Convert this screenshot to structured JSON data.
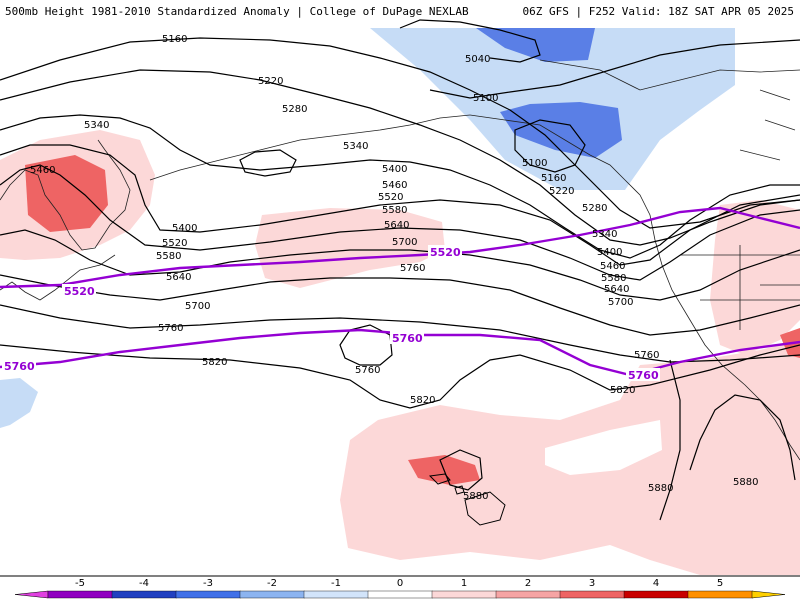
{
  "header": {
    "left": "500mb Height 1981-2010 Standardized Anomaly | College of DuPage NEXLAB",
    "right": "06Z GFS | F252 Valid: 18Z SAT APR 05 2025"
  },
  "contour_labels": {
    "c5160": "5160",
    "c5220": "5220",
    "c5280": "5280",
    "c5340": "5340",
    "c5400": "5400",
    "c5460": "5460",
    "c5520": "5520",
    "c5580": "5580",
    "c5640": "5640",
    "c5700": "5700",
    "c5760": "5760",
    "c5820": "5820",
    "c5880": "5880",
    "c5040": "5040",
    "c5100": "5100"
  },
  "climo_labels": {
    "c5520": "5520",
    "c5760": "5760"
  },
  "colorbar": {
    "ticks": [
      "-5",
      "-4",
      "-3",
      "-2",
      "-1",
      "0",
      "1",
      "2",
      "3",
      "4",
      "5"
    ],
    "colors": [
      "#e040e0",
      "#9000c0",
      "#2040c0",
      "#4070e8",
      "#8cb4f0",
      "#d2e4fa",
      "#ffffff",
      "#fcd8d8",
      "#f6a4a4",
      "#ee6464",
      "#c80000",
      "#ff9000",
      "#ffd000"
    ]
  },
  "colors": {
    "climo_line": "#9400d3",
    "contour": "#000000"
  }
}
